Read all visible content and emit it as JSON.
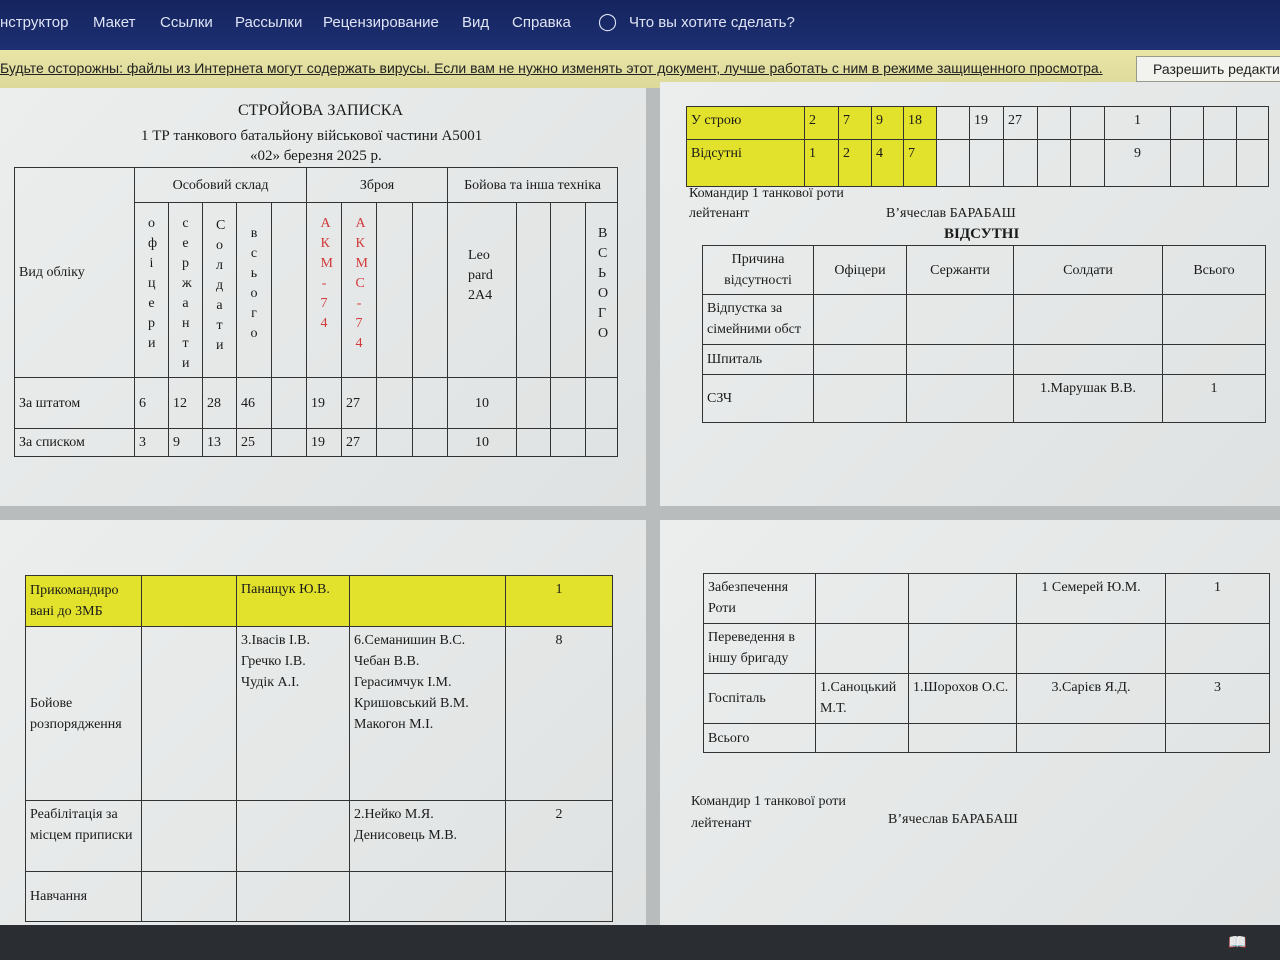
{
  "ribbon": {
    "tabs": [
      "нструктор",
      "Макет",
      "Ссылки",
      "Рассылки",
      "Рецензирование",
      "Вид",
      "Справка"
    ],
    "tell_me": "Что вы хотите сделать?",
    "tell_me_icon": "lightbulb-icon"
  },
  "protected_view": {
    "message": "Будьте осторожны: файлы из Интернета могут содержать вирусы. Если вам не нужно изменять этот документ, лучше работать с ним в режиме защищенного просмотра.",
    "enable_button": "Разрешить редактир"
  },
  "colors": {
    "ribbon": "#1d2f72",
    "highlight": "#e2e22c",
    "red_text": "#d23a3a"
  },
  "doc": {
    "title": "СТРОЙОВА ЗАПИСКА",
    "subtitle": "1 ТР танкового батальйону військової частини А5001",
    "date": "«02» березня 2025 р.",
    "t1": {
      "head": {
        "kind": "Вид обліку",
        "personnel": "Особовий склад",
        "weapons": "Зброя",
        "equipment": "Бойова та інша техніка"
      },
      "sub": [
        "офіцери",
        "сержанти",
        "Солдати",
        "всього",
        "",
        "АКМ-74",
        "АКМС-74",
        "",
        "",
        "Leopard 2A4",
        "",
        "",
        "ВСЬОГО"
      ],
      "rows": [
        [
          "За штатом",
          "6",
          "12",
          "28",
          "46",
          "",
          "19",
          "27",
          "",
          "",
          "10",
          "",
          "",
          ""
        ],
        [
          "За списком",
          "3",
          "9",
          "13",
          "25",
          "",
          "19",
          "27",
          "",
          "",
          "10",
          "",
          "",
          ""
        ]
      ]
    },
    "t2": {
      "rows": [
        [
          "У строю",
          "2",
          "7",
          "9",
          "18",
          "",
          "19",
          "27",
          "",
          "",
          "1",
          "",
          "",
          ""
        ],
        [
          "Відсутні",
          "1",
          "2",
          "4",
          "7",
          "",
          "",
          "",
          "",
          "",
          "9",
          "",
          "",
          ""
        ]
      ]
    },
    "commander": {
      "title": "Командир 1 танкової роти",
      "rank": "лейтенант",
      "name": "В’ячеслав БАРАБАШ"
    },
    "absent_title": "ВІДСУТНІ",
    "t3": {
      "head": [
        "Причина відсутності",
        "Офіцери",
        "Сержанти",
        "Солдати",
        "Всього"
      ],
      "rows": [
        [
          "Відпустка за сімейними обст",
          "",
          "",
          "",
          ""
        ],
        [
          "Шпиталь",
          "",
          "",
          "",
          ""
        ],
        [
          "СЗЧ",
          "",
          "",
          "1.Марушак В.В.",
          "1"
        ]
      ]
    },
    "t4": {
      "rows": [
        [
          "Прикомандиро вані до 3МБ",
          "",
          "Панащук Ю.В.",
          "",
          "1"
        ],
        [
          "Бойове розпорядження",
          "",
          "3.Івасів І.В.\n   Гречко І.В.\n   Чудік А.І.",
          "6.Семанишин В.С.\n Чебан В.В.\n Герасимчук І.М.\n Кришовський В.М.\n Макогон М.І.",
          "8"
        ],
        [
          "Реабілітація за місцем приписки",
          "",
          "",
          "     2.Нейко М.Я.\n      Денисовець М.В.",
          "2"
        ],
        [
          "Навчання",
          "",
          "",
          "",
          ""
        ]
      ]
    },
    "t5": {
      "rows": [
        [
          "Забезпечення Роти",
          "",
          "",
          "1 Семерей Ю.М.",
          "1"
        ],
        [
          "Переведення в іншу бригаду",
          "",
          "",
          "",
          ""
        ],
        [
          "Госпіталь",
          "1.Саноцький М.Т.",
          "1.Шорохов О.С.",
          "3.Сарієв Я.Д.",
          "3"
        ],
        [
          "Всього",
          "",
          "",
          "",
          ""
        ]
      ]
    }
  },
  "status": {
    "view_icon": "read-mode-icon"
  }
}
